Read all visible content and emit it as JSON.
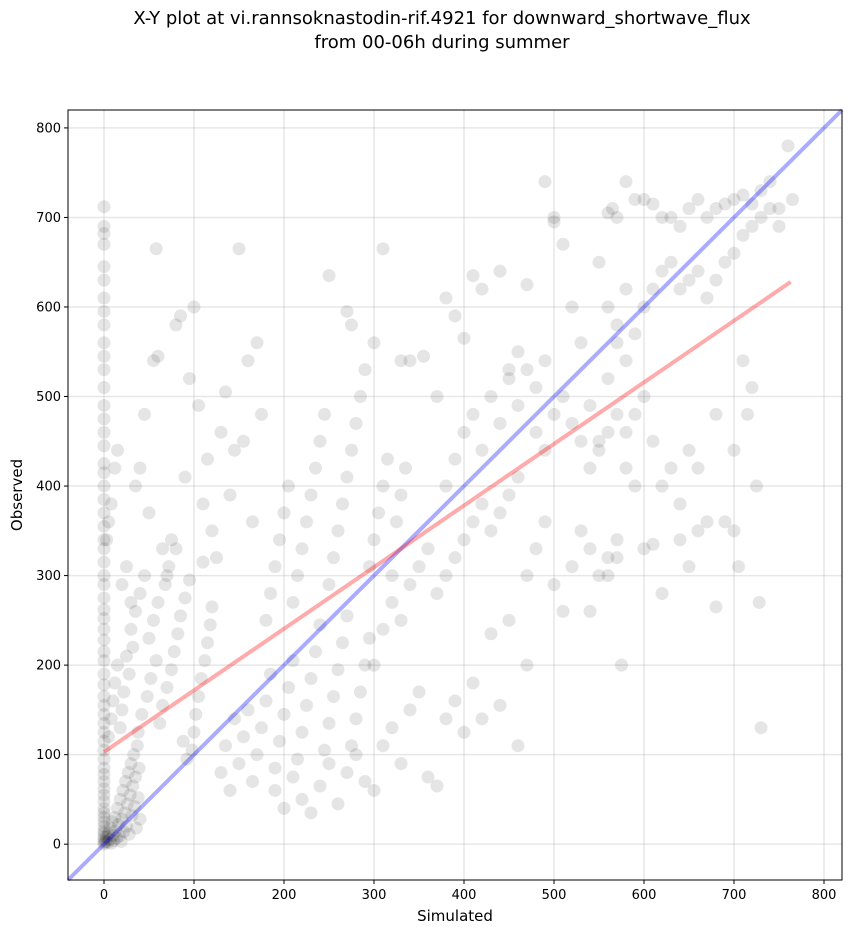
{
  "chart_data": {
    "type": "scatter",
    "title_lines": [
      "X-Y plot at vi.rannsoknastodin-rif.4921 for downward_shortwave_flux",
      "from 00-06h during summer"
    ],
    "xlabel": "Simulated",
    "ylabel": "Observed",
    "xlim": [
      -40,
      820
    ],
    "ylim": [
      -40,
      820
    ],
    "xticks": [
      0,
      100,
      200,
      300,
      400,
      500,
      600,
      700,
      800
    ],
    "yticks": [
      0,
      100,
      200,
      300,
      400,
      500,
      600,
      700,
      800
    ],
    "grid": true,
    "point_color": "#000000",
    "point_alpha": 0.1,
    "lines": [
      {
        "role": "identity",
        "color": "#0000ff",
        "alpha": 0.33,
        "x": [
          -40,
          820
        ],
        "y": [
          -40,
          820
        ]
      },
      {
        "role": "linear-fit",
        "color": "#ff0000",
        "alpha": 0.33,
        "x": [
          0,
          763
        ],
        "y": [
          103,
          628
        ]
      }
    ],
    "points": [
      [
        0,
        0
      ],
      [
        0,
        2
      ],
      [
        0,
        5
      ],
      [
        0,
        8
      ],
      [
        0,
        12
      ],
      [
        0,
        15
      ],
      [
        0,
        20
      ],
      [
        0,
        25
      ],
      [
        0,
        30
      ],
      [
        0,
        35
      ],
      [
        0,
        40
      ],
      [
        0,
        48
      ],
      [
        0,
        55
      ],
      [
        0,
        62
      ],
      [
        0,
        70
      ],
      [
        0,
        78
      ],
      [
        0,
        85
      ],
      [
        0,
        95
      ],
      [
        0,
        105
      ],
      [
        0,
        115
      ],
      [
        0,
        125
      ],
      [
        0,
        135
      ],
      [
        0,
        145
      ],
      [
        0,
        155
      ],
      [
        0,
        165
      ],
      [
        0,
        178
      ],
      [
        0,
        190
      ],
      [
        0,
        205
      ],
      [
        0,
        215
      ],
      [
        0,
        228
      ],
      [
        0,
        240
      ],
      [
        0,
        252
      ],
      [
        0,
        262
      ],
      [
        0,
        275
      ],
      [
        0,
        290
      ],
      [
        0,
        300
      ],
      [
        0,
        315
      ],
      [
        0,
        330
      ],
      [
        0,
        340
      ],
      [
        0,
        355
      ],
      [
        0,
        370
      ],
      [
        0,
        385
      ],
      [
        0,
        400
      ],
      [
        0,
        415
      ],
      [
        0,
        425
      ],
      [
        0,
        445
      ],
      [
        0,
        460
      ],
      [
        0,
        475
      ],
      [
        0,
        490
      ],
      [
        0,
        510
      ],
      [
        0,
        530
      ],
      [
        0,
        545
      ],
      [
        0,
        560
      ],
      [
        0,
        580
      ],
      [
        0,
        595
      ],
      [
        0,
        610
      ],
      [
        0,
        630
      ],
      [
        0,
        645
      ],
      [
        0,
        670
      ],
      [
        0,
        682
      ],
      [
        0,
        690
      ],
      [
        0,
        712
      ],
      [
        2,
        3
      ],
      [
        3,
        8
      ],
      [
        4,
        2
      ],
      [
        5,
        12
      ],
      [
        6,
        5
      ],
      [
        7,
        18
      ],
      [
        8,
        1
      ],
      [
        9,
        25
      ],
      [
        10,
        10
      ],
      [
        11,
        4
      ],
      [
        12,
        30
      ],
      [
        13,
        15
      ],
      [
        14,
        7
      ],
      [
        15,
        40
      ],
      [
        16,
        22
      ],
      [
        17,
        9
      ],
      [
        18,
        50
      ],
      [
        19,
        3
      ],
      [
        20,
        28
      ],
      [
        21,
        60
      ],
      [
        22,
        14
      ],
      [
        23,
        35
      ],
      [
        24,
        70
      ],
      [
        25,
        20
      ],
      [
        26,
        45
      ],
      [
        27,
        80
      ],
      [
        28,
        11
      ],
      [
        29,
        55
      ],
      [
        30,
        90
      ],
      [
        31,
        32
      ],
      [
        32,
        65
      ],
      [
        33,
        100
      ],
      [
        34,
        42
      ],
      [
        35,
        75
      ],
      [
        36,
        18
      ],
      [
        37,
        110
      ],
      [
        38,
        52
      ],
      [
        39,
        85
      ],
      [
        40,
        28
      ],
      [
        5,
        120
      ],
      [
        8,
        140
      ],
      [
        10,
        160
      ],
      [
        12,
        180
      ],
      [
        15,
        200
      ],
      [
        18,
        130
      ],
      [
        20,
        150
      ],
      [
        22,
        170
      ],
      [
        25,
        210
      ],
      [
        28,
        190
      ],
      [
        30,
        240
      ],
      [
        32,
        220
      ],
      [
        35,
        260
      ],
      [
        38,
        125
      ],
      [
        40,
        280
      ],
      [
        42,
        145
      ],
      [
        45,
        300
      ],
      [
        48,
        165
      ],
      [
        50,
        230
      ],
      [
        52,
        185
      ],
      [
        55,
        250
      ],
      [
        58,
        205
      ],
      [
        60,
        270
      ],
      [
        62,
        135
      ],
      [
        65,
        155
      ],
      [
        68,
        290
      ],
      [
        70,
        175
      ],
      [
        72,
        310
      ],
      [
        75,
        195
      ],
      [
        78,
        215
      ],
      [
        80,
        330
      ],
      [
        82,
        235
      ],
      [
        85,
        255
      ],
      [
        88,
        115
      ],
      [
        90,
        275
      ],
      [
        92,
        95
      ],
      [
        95,
        295
      ],
      [
        98,
        105
      ],
      [
        100,
        125
      ],
      [
        102,
        145
      ],
      [
        105,
        165
      ],
      [
        108,
        185
      ],
      [
        110,
        315
      ],
      [
        112,
        205
      ],
      [
        115,
        225
      ],
      [
        118,
        245
      ],
      [
        120,
        265
      ],
      [
        3,
        340
      ],
      [
        5,
        360
      ],
      [
        8,
        380
      ],
      [
        12,
        420
      ],
      [
        15,
        440
      ],
      [
        20,
        290
      ],
      [
        25,
        310
      ],
      [
        30,
        270
      ],
      [
        35,
        400
      ],
      [
        40,
        420
      ],
      [
        45,
        480
      ],
      [
        50,
        370
      ],
      [
        55,
        540
      ],
      [
        58,
        665
      ],
      [
        60,
        545
      ],
      [
        65,
        330
      ],
      [
        70,
        300
      ],
      [
        75,
        340
      ],
      [
        80,
        580
      ],
      [
        85,
        590
      ],
      [
        90,
        410
      ],
      [
        95,
        520
      ],
      [
        100,
        600
      ],
      [
        105,
        490
      ],
      [
        110,
        380
      ],
      [
        115,
        430
      ],
      [
        120,
        350
      ],
      [
        125,
        320
      ],
      [
        130,
        460
      ],
      [
        135,
        505
      ],
      [
        140,
        390
      ],
      [
        145,
        440
      ],
      [
        150,
        665
      ],
      [
        155,
        450
      ],
      [
        160,
        540
      ],
      [
        165,
        360
      ],
      [
        170,
        560
      ],
      [
        175,
        480
      ],
      [
        130,
        80
      ],
      [
        135,
        110
      ],
      [
        140,
        60
      ],
      [
        145,
        140
      ],
      [
        150,
        90
      ],
      [
        155,
        120
      ],
      [
        160,
        150
      ],
      [
        165,
        70
      ],
      [
        170,
        100
      ],
      [
        175,
        130
      ],
      [
        180,
        160
      ],
      [
        185,
        190
      ],
      [
        190,
        85
      ],
      [
        195,
        115
      ],
      [
        200,
        145
      ],
      [
        205,
        175
      ],
      [
        210,
        205
      ],
      [
        215,
        95
      ],
      [
        220,
        125
      ],
      [
        225,
        155
      ],
      [
        230,
        185
      ],
      [
        235,
        215
      ],
      [
        240,
        245
      ],
      [
        245,
        105
      ],
      [
        250,
        135
      ],
      [
        255,
        165
      ],
      [
        260,
        195
      ],
      [
        265,
        225
      ],
      [
        270,
        255
      ],
      [
        275,
        110
      ],
      [
        280,
        140
      ],
      [
        285,
        170
      ],
      [
        290,
        200
      ],
      [
        295,
        230
      ],
      [
        180,
        250
      ],
      [
        185,
        280
      ],
      [
        190,
        310
      ],
      [
        195,
        340
      ],
      [
        200,
        370
      ],
      [
        205,
        400
      ],
      [
        210,
        270
      ],
      [
        215,
        300
      ],
      [
        220,
        330
      ],
      [
        225,
        360
      ],
      [
        230,
        390
      ],
      [
        235,
        420
      ],
      [
        240,
        450
      ],
      [
        245,
        480
      ],
      [
        250,
        290
      ],
      [
        255,
        320
      ],
      [
        260,
        350
      ],
      [
        265,
        380
      ],
      [
        270,
        410
      ],
      [
        275,
        440
      ],
      [
        280,
        470
      ],
      [
        285,
        500
      ],
      [
        290,
        530
      ],
      [
        295,
        310
      ],
      [
        300,
        340
      ],
      [
        305,
        370
      ],
      [
        310,
        400
      ],
      [
        315,
        430
      ],
      [
        320,
        300
      ],
      [
        325,
        360
      ],
      [
        330,
        390
      ],
      [
        335,
        420
      ],
      [
        190,
        60
      ],
      [
        200,
        40
      ],
      [
        210,
        75
      ],
      [
        220,
        50
      ],
      [
        230,
        35
      ],
      [
        240,
        65
      ],
      [
        250,
        90
      ],
      [
        260,
        45
      ],
      [
        270,
        80
      ],
      [
        280,
        100
      ],
      [
        290,
        70
      ],
      [
        300,
        60
      ],
      [
        310,
        110
      ],
      [
        320,
        130
      ],
      [
        330,
        90
      ],
      [
        340,
        150
      ],
      [
        350,
        170
      ],
      [
        360,
        75
      ],
      [
        370,
        65
      ],
      [
        380,
        140
      ],
      [
        390,
        160
      ],
      [
        400,
        125
      ],
      [
        410,
        180
      ],
      [
        420,
        140
      ],
      [
        430,
        235
      ],
      [
        440,
        155
      ],
      [
        450,
        250
      ],
      [
        460,
        110
      ],
      [
        470,
        200
      ],
      [
        300,
        200
      ],
      [
        310,
        240
      ],
      [
        320,
        270
      ],
      [
        330,
        250
      ],
      [
        340,
        290
      ],
      [
        350,
        310
      ],
      [
        360,
        330
      ],
      [
        370,
        280
      ],
      [
        380,
        300
      ],
      [
        390,
        320
      ],
      [
        400,
        340
      ],
      [
        410,
        360
      ],
      [
        420,
        380
      ],
      [
        430,
        350
      ],
      [
        440,
        370
      ],
      [
        450,
        390
      ],
      [
        460,
        410
      ],
      [
        470,
        300
      ],
      [
        480,
        330
      ],
      [
        490,
        360
      ],
      [
        500,
        290
      ],
      [
        510,
        260
      ],
      [
        520,
        310
      ],
      [
        530,
        350
      ],
      [
        540,
        330
      ],
      [
        550,
        300
      ],
      [
        560,
        320
      ],
      [
        570,
        340
      ],
      [
        250,
        635
      ],
      [
        270,
        595
      ],
      [
        275,
        580
      ],
      [
        300,
        560
      ],
      [
        310,
        665
      ],
      [
        330,
        540
      ],
      [
        340,
        540
      ],
      [
        355,
        545
      ],
      [
        370,
        500
      ],
      [
        380,
        610
      ],
      [
        390,
        590
      ],
      [
        400,
        565
      ],
      [
        410,
        635
      ],
      [
        420,
        620
      ],
      [
        440,
        640
      ],
      [
        450,
        530
      ],
      [
        460,
        550
      ],
      [
        470,
        625
      ],
      [
        480,
        510
      ],
      [
        490,
        540
      ],
      [
        500,
        700
      ],
      [
        510,
        670
      ],
      [
        520,
        600
      ],
      [
        530,
        560
      ],
      [
        540,
        490
      ],
      [
        550,
        450
      ],
      [
        560,
        520
      ],
      [
        570,
        560
      ],
      [
        580,
        540
      ],
      [
        380,
        400
      ],
      [
        390,
        430
      ],
      [
        400,
        460
      ],
      [
        410,
        480
      ],
      [
        420,
        440
      ],
      [
        430,
        500
      ],
      [
        440,
        470
      ],
      [
        450,
        520
      ],
      [
        460,
        490
      ],
      [
        470,
        530
      ],
      [
        480,
        460
      ],
      [
        490,
        440
      ],
      [
        500,
        480
      ],
      [
        510,
        500
      ],
      [
        520,
        470
      ],
      [
        530,
        450
      ],
      [
        540,
        420
      ],
      [
        550,
        440
      ],
      [
        560,
        460
      ],
      [
        570,
        480
      ],
      [
        580,
        420
      ],
      [
        590,
        400
      ],
      [
        490,
        740
      ],
      [
        500,
        695
      ],
      [
        550,
        650
      ],
      [
        560,
        705
      ],
      [
        565,
        710
      ],
      [
        570,
        700
      ],
      [
        580,
        740
      ],
      [
        590,
        720
      ],
      [
        600,
        720
      ],
      [
        610,
        715
      ],
      [
        620,
        700
      ],
      [
        630,
        700
      ],
      [
        640,
        690
      ],
      [
        650,
        710
      ],
      [
        660,
        720
      ],
      [
        670,
        700
      ],
      [
        680,
        710
      ],
      [
        690,
        715
      ],
      [
        700,
        720
      ],
      [
        710,
        725
      ],
      [
        720,
        715
      ],
      [
        730,
        730
      ],
      [
        740,
        740
      ],
      [
        750,
        710
      ],
      [
        760,
        780
      ],
      [
        765,
        720
      ],
      [
        560,
        600
      ],
      [
        570,
        580
      ],
      [
        580,
        620
      ],
      [
        590,
        570
      ],
      [
        600,
        600
      ],
      [
        610,
        620
      ],
      [
        620,
        640
      ],
      [
        630,
        650
      ],
      [
        640,
        620
      ],
      [
        650,
        630
      ],
      [
        660,
        640
      ],
      [
        670,
        610
      ],
      [
        680,
        630
      ],
      [
        690,
        650
      ],
      [
        700,
        660
      ],
      [
        710,
        680
      ],
      [
        720,
        690
      ],
      [
        730,
        700
      ],
      [
        740,
        710
      ],
      [
        750,
        690
      ],
      [
        580,
        460
      ],
      [
        590,
        480
      ],
      [
        600,
        500
      ],
      [
        610,
        450
      ],
      [
        620,
        400
      ],
      [
        630,
        420
      ],
      [
        640,
        380
      ],
      [
        650,
        440
      ],
      [
        660,
        350
      ],
      [
        670,
        360
      ],
      [
        680,
        265
      ],
      [
        690,
        360
      ],
      [
        700,
        350
      ],
      [
        705,
        310
      ],
      [
        710,
        540
      ],
      [
        715,
        480
      ],
      [
        720,
        510
      ],
      [
        725,
        400
      ],
      [
        728,
        270
      ],
      [
        730,
        130
      ],
      [
        540,
        260
      ],
      [
        560,
        300
      ],
      [
        570,
        320
      ],
      [
        575,
        200
      ],
      [
        600,
        330
      ],
      [
        610,
        335
      ],
      [
        620,
        280
      ],
      [
        640,
        340
      ],
      [
        650,
        310
      ],
      [
        660,
        420
      ],
      [
        680,
        480
      ],
      [
        700,
        440
      ]
    ]
  }
}
